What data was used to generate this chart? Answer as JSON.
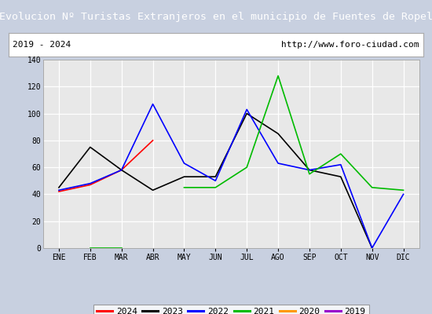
{
  "title": "Evolucion Nº Turistas Extranjeros en el municipio de Fuentes de Ropel",
  "subtitle_left": "2019 - 2024",
  "subtitle_right": "http://www.foro-ciudad.com",
  "xlabel_months": [
    "ENE",
    "FEB",
    "MAR",
    "ABR",
    "MAY",
    "JUN",
    "JUL",
    "AGO",
    "SEP",
    "OCT",
    "NOV",
    "DIC"
  ],
  "ylim": [
    0,
    140
  ],
  "yticks": [
    0,
    20,
    40,
    60,
    80,
    100,
    120,
    140
  ],
  "series": {
    "2024": {
      "color": "#ff0000",
      "data": [
        42,
        47,
        58,
        80,
        null,
        null,
        null,
        null,
        null,
        null,
        null,
        null
      ]
    },
    "2023": {
      "color": "#000000",
      "data": [
        45,
        75,
        58,
        43,
        53,
        53,
        100,
        85,
        58,
        53,
        0,
        null
      ]
    },
    "2022": {
      "color": "#0000ff",
      "data": [
        43,
        48,
        58,
        107,
        63,
        50,
        103,
        63,
        58,
        62,
        0,
        40
      ]
    },
    "2021": {
      "color": "#00bb00",
      "data": [
        null,
        0,
        0,
        null,
        45,
        45,
        60,
        128,
        55,
        70,
        45,
        43
      ]
    },
    "2020": {
      "color": "#ff9900",
      "data": [
        null,
        null,
        null,
        null,
        null,
        null,
        null,
        null,
        null,
        null,
        null,
        null
      ]
    },
    "2019": {
      "color": "#9900cc",
      "data": [
        null,
        null,
        null,
        null,
        null,
        null,
        null,
        null,
        null,
        null,
        null,
        null
      ]
    }
  },
  "title_bg_color": "#3a6fd8",
  "title_text_color": "#ffffff",
  "plot_bg_color": "#e8e8e8",
  "grid_color": "#ffffff",
  "fig_bg_color": "#c8d0e0",
  "subtitle_box_color": "#ffffff",
  "legend_order": [
    "2024",
    "2023",
    "2022",
    "2021",
    "2020",
    "2019"
  ],
  "title_fontsize": 9.5,
  "tick_fontsize": 7,
  "legend_fontsize": 8
}
